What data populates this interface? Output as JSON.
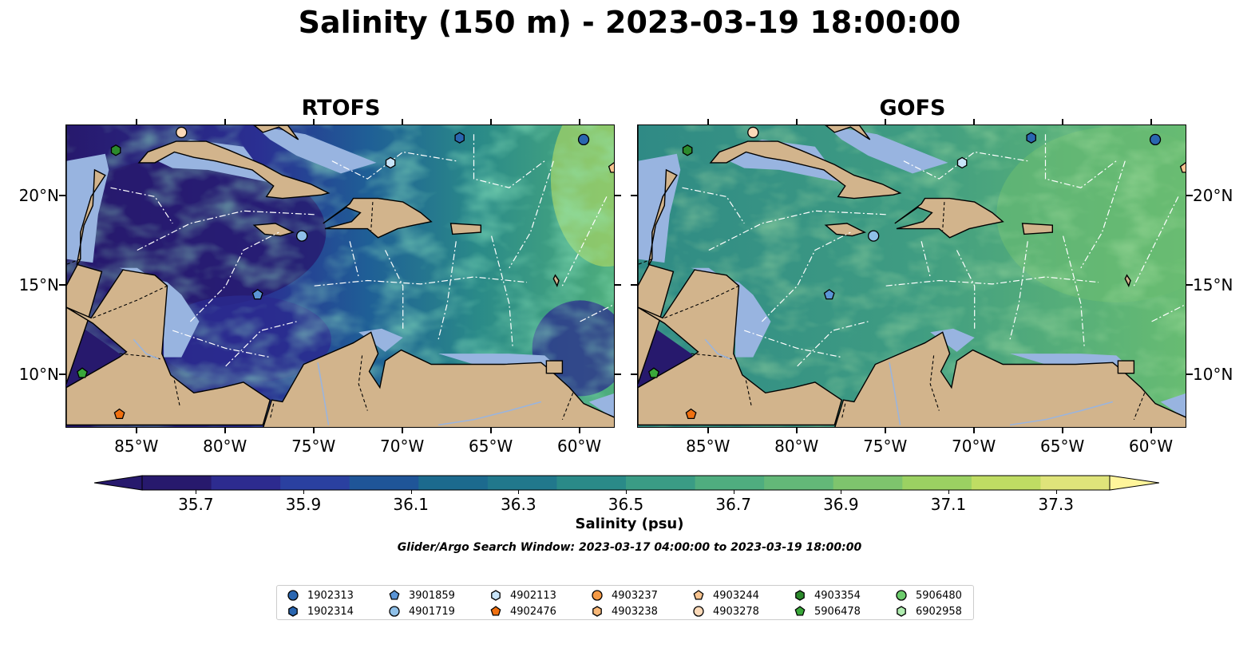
{
  "title": "Salinity (150 m) - 2023-03-19 18:00:00",
  "panels": [
    {
      "title": "RTOFS",
      "model": "rtofs"
    },
    {
      "title": "GOFS",
      "model": "gofs"
    }
  ],
  "lon_ticks": [
    "85°W",
    "80°W",
    "75°W",
    "70°W",
    "65°W",
    "60°W"
  ],
  "lat_ticks": [
    "20°N",
    "15°N",
    "10°N"
  ],
  "colorbar": {
    "label": "Salinity (psu)",
    "ticks": [
      "35.7",
      "35.9",
      "36.1",
      "36.3",
      "36.5",
      "36.7",
      "36.9",
      "37.1",
      "37.3"
    ],
    "colors": [
      "#27196d",
      "#2d2b8f",
      "#2a40a0",
      "#1f5598",
      "#1c6a8e",
      "#21788c",
      "#2a8a88",
      "#3a9c85",
      "#4fad7f",
      "#63b878",
      "#7ec46d",
      "#9bd162",
      "#bfdc63",
      "#dfe47a"
    ],
    "range": [
      35.6,
      37.4
    ]
  },
  "search_window": "Glider/Argo Search Window: 2023-03-17 04:00:00 to 2023-03-19 18:00:00",
  "colors": {
    "land": "#d2b48c",
    "shelf": "#98b4e0",
    "ocean_deep": "#27196d"
  },
  "legend": [
    {
      "id": "1902313",
      "marker": "circle",
      "color": "#2a66b0"
    },
    {
      "id": "1902314",
      "marker": "hexagon",
      "color": "#2a66b0"
    },
    {
      "id": "3901859",
      "marker": "pentagon",
      "color": "#5b95d6"
    },
    {
      "id": "4901719",
      "marker": "circle",
      "color": "#8fc0e8"
    },
    {
      "id": "4902113",
      "marker": "hexagon",
      "color": "#c8e4f8"
    },
    {
      "id": "4902476",
      "marker": "pentagon",
      "color": "#f07010"
    },
    {
      "id": "4903237",
      "marker": "circle",
      "color": "#f59a45"
    },
    {
      "id": "4903238",
      "marker": "hexagon",
      "color": "#f8b878"
    },
    {
      "id": "4903244",
      "marker": "pentagon",
      "color": "#f8c490"
    },
    {
      "id": "4903278",
      "marker": "circle",
      "color": "#fbd9b8"
    },
    {
      "id": "4903354",
      "marker": "hexagon",
      "color": "#2c8a2c"
    },
    {
      "id": "5906478",
      "marker": "pentagon",
      "color": "#3aa83a"
    },
    {
      "id": "5906480",
      "marker": "circle",
      "color": "#6ccc6c"
    },
    {
      "id": "6902958",
      "marker": "hexagon",
      "color": "#b0ecb0"
    }
  ]
}
